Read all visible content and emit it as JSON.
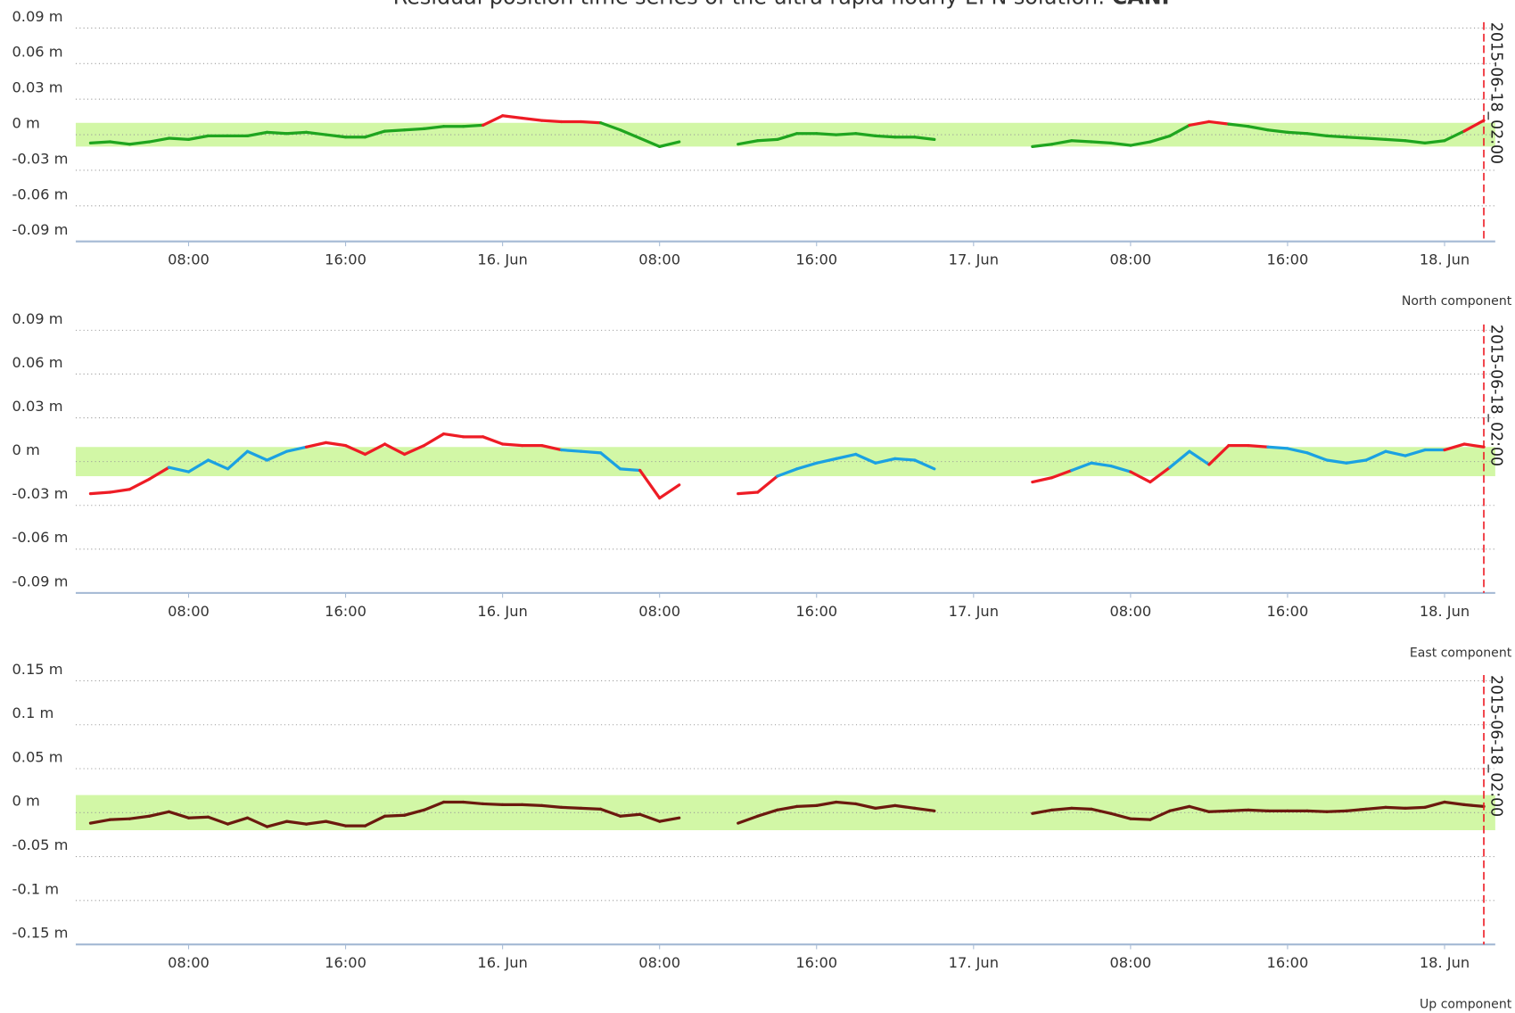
{
  "title": "Residual position time series of the ultra rapid hourly EPN solution:",
  "station": "CANF",
  "chart_data": [
    {
      "type": "line",
      "subtitle": "North component",
      "x": [
        "2015-06-15 03:00",
        "2015-06-15 04:00",
        "2015-06-15 05:00",
        "2015-06-15 06:00",
        "2015-06-15 07:00",
        "2015-06-15 08:00",
        "2015-06-15 09:00",
        "2015-06-15 10:00",
        "2015-06-15 11:00",
        "2015-06-15 12:00",
        "2015-06-15 13:00",
        "2015-06-15 14:00",
        "2015-06-15 15:00",
        "2015-06-15 16:00",
        "2015-06-15 17:00",
        "2015-06-15 18:00",
        "2015-06-15 19:00",
        "2015-06-15 20:00",
        "2015-06-15 21:00",
        "2015-06-15 22:00",
        "2015-06-15 23:00",
        "2015-06-16 00:00",
        "2015-06-16 01:00",
        "2015-06-16 02:00",
        "2015-06-16 03:00",
        "2015-06-16 04:00",
        "2015-06-16 05:00",
        "2015-06-16 06:00",
        "2015-06-16 07:00",
        "2015-06-16 08:00",
        "2015-06-16 09:00",
        "2015-06-16 10:00",
        "2015-06-16 11:00",
        "2015-06-16 12:00",
        "2015-06-16 13:00",
        "2015-06-16 14:00",
        "2015-06-16 15:00",
        "2015-06-16 16:00",
        "2015-06-16 17:00",
        "2015-06-16 18:00",
        "2015-06-16 19:00",
        "2015-06-16 20:00",
        "2015-06-16 21:00",
        "2015-06-16 22:00",
        "2015-06-16 23:00",
        "2015-06-17 00:00",
        "2015-06-17 01:00",
        "2015-06-17 02:00",
        "2015-06-17 03:00",
        "2015-06-17 04:00",
        "2015-06-17 05:00",
        "2015-06-17 06:00",
        "2015-06-17 07:00",
        "2015-06-17 08:00",
        "2015-06-17 09:00",
        "2015-06-17 10:00",
        "2015-06-17 11:00",
        "2015-06-17 12:00",
        "2015-06-17 13:00",
        "2015-06-17 14:00",
        "2015-06-17 15:00",
        "2015-06-17 16:00",
        "2015-06-17 17:00",
        "2015-06-17 18:00",
        "2015-06-17 19:00",
        "2015-06-17 20:00",
        "2015-06-17 21:00",
        "2015-06-17 22:00",
        "2015-06-17 23:00",
        "2015-06-18 00:00",
        "2015-06-18 01:00",
        "2015-06-18 02:00"
      ],
      "series": [
        {
          "color": "#1fa51f",
          "exceed_color": "#ee1c25",
          "values": [
            -0.007,
            -0.006,
            -0.008,
            -0.006,
            -0.003,
            -0.004,
            -0.001,
            -0.001,
            -0.001,
            0.002,
            0.001,
            0.002,
            0,
            -0.002,
            -0.002,
            0.003,
            0.004,
            0.005,
            0.007,
            0.007,
            0.008,
            0.016,
            0.014,
            0.012,
            0.011,
            0.011,
            0.01,
            0.004,
            -0.003,
            -0.01,
            -0.006,
            null,
            null,
            -0.008,
            -0.005,
            -0.004,
            0.001,
            0.001,
            0,
            0.001,
            -0.001,
            -0.002,
            -0.002,
            -0.004,
            null,
            null,
            null,
            null,
            -0.01,
            -0.008,
            -0.005,
            -0.006,
            -0.007,
            -0.009,
            -0.006,
            -0.001,
            0.008,
            0.011,
            0.009,
            0.007,
            0.004,
            0.002,
            0.001,
            -0.001,
            -0.002,
            -0.003,
            -0.004,
            -0.005,
            -0.007,
            -0.005,
            0.003,
            0.012
          ]
        }
      ],
      "band": [
        -0.01,
        0.01
      ],
      "band_color": "#d2f7a6",
      "xlim": [
        "2015-06-15 02:15",
        "2015-06-18 02:35"
      ],
      "xticks": [
        {
          "value": "2015-06-15 08:00",
          "label": "08:00"
        },
        {
          "value": "2015-06-15 16:00",
          "label": "16:00"
        },
        {
          "value": "2015-06-16 00:00",
          "label": "16. Jun"
        },
        {
          "value": "2015-06-16 08:00",
          "label": "08:00"
        },
        {
          "value": "2015-06-16 16:00",
          "label": "16:00"
        },
        {
          "value": "2015-06-17 00:00",
          "label": "17. Jun"
        },
        {
          "value": "2015-06-17 08:00",
          "label": "08:00"
        },
        {
          "value": "2015-06-17 16:00",
          "label": "16:00"
        },
        {
          "value": "2015-06-18 00:00",
          "label": "18. Jun"
        }
      ],
      "ylim": [
        -0.09,
        0.09
      ],
      "yticks": [
        {
          "value": 0.09,
          "label": "0.09 m"
        },
        {
          "value": 0.06,
          "label": "0.06 m"
        },
        {
          "value": 0.03,
          "label": "0.03 m"
        },
        {
          "value": 0,
          "label": "0 m"
        },
        {
          "value": -0.03,
          "label": "-0.03 m"
        },
        {
          "value": -0.06,
          "label": "-0.06 m"
        },
        {
          "value": -0.09,
          "label": "-0.09 m"
        }
      ],
      "grid": true,
      "marker": {
        "x": "2015-06-18 02:00",
        "label": "2015-06-18_02:00",
        "color": "#ee1c25"
      }
    },
    {
      "type": "line",
      "subtitle": "East component",
      "x": [
        "2015-06-15 03:00",
        "2015-06-15 04:00",
        "2015-06-15 05:00",
        "2015-06-15 06:00",
        "2015-06-15 07:00",
        "2015-06-15 08:00",
        "2015-06-15 09:00",
        "2015-06-15 10:00",
        "2015-06-15 11:00",
        "2015-06-15 12:00",
        "2015-06-15 13:00",
        "2015-06-15 14:00",
        "2015-06-15 15:00",
        "2015-06-15 16:00",
        "2015-06-15 17:00",
        "2015-06-15 18:00",
        "2015-06-15 19:00",
        "2015-06-15 20:00",
        "2015-06-15 21:00",
        "2015-06-15 22:00",
        "2015-06-15 23:00",
        "2015-06-16 00:00",
        "2015-06-16 01:00",
        "2015-06-16 02:00",
        "2015-06-16 03:00",
        "2015-06-16 04:00",
        "2015-06-16 05:00",
        "2015-06-16 06:00",
        "2015-06-16 07:00",
        "2015-06-16 08:00",
        "2015-06-16 09:00",
        "2015-06-16 10:00",
        "2015-06-16 11:00",
        "2015-06-16 12:00",
        "2015-06-16 13:00",
        "2015-06-16 14:00",
        "2015-06-16 15:00",
        "2015-06-16 16:00",
        "2015-06-16 17:00",
        "2015-06-16 18:00",
        "2015-06-16 19:00",
        "2015-06-16 20:00",
        "2015-06-16 21:00",
        "2015-06-16 22:00",
        "2015-06-16 23:00",
        "2015-06-17 00:00",
        "2015-06-17 01:00",
        "2015-06-17 02:00",
        "2015-06-17 03:00",
        "2015-06-17 04:00",
        "2015-06-17 05:00",
        "2015-06-17 06:00",
        "2015-06-17 07:00",
        "2015-06-17 08:00",
        "2015-06-17 09:00",
        "2015-06-17 10:00",
        "2015-06-17 11:00",
        "2015-06-17 12:00",
        "2015-06-17 13:00",
        "2015-06-17 14:00",
        "2015-06-17 15:00",
        "2015-06-17 16:00",
        "2015-06-17 17:00",
        "2015-06-17 18:00",
        "2015-06-17 19:00",
        "2015-06-17 20:00",
        "2015-06-17 21:00",
        "2015-06-17 22:00",
        "2015-06-17 23:00",
        "2015-06-18 00:00",
        "2015-06-18 01:00",
        "2015-06-18 02:00"
      ],
      "series": [
        {
          "color": "#1ba1e2",
          "exceed_color": "#ee1c25",
          "values": [
            -0.022,
            -0.021,
            -0.019,
            -0.012,
            -0.004,
            -0.007,
            0.001,
            -0.005,
            0.007,
            0.001,
            0.007,
            0.01,
            0.013,
            0.011,
            0.005,
            0.012,
            0.005,
            0.011,
            0.019,
            0.017,
            0.017,
            0.012,
            0.011,
            0.011,
            0.008,
            0.007,
            0.006,
            -0.005,
            -0.006,
            -0.025,
            -0.016,
            null,
            null,
            -0.022,
            -0.021,
            -0.01,
            -0.005,
            -0.001,
            0.002,
            0.005,
            -0.001,
            0.002,
            0.001,
            -0.005,
            null,
            null,
            null,
            null,
            -0.014,
            -0.011,
            -0.006,
            -0.001,
            -0.003,
            -0.007,
            -0.014,
            -0.004,
            0.007,
            -0.002,
            0.011,
            0.011,
            0.01,
            0.009,
            0.006,
            0.001,
            -0.001,
            0.001,
            0.007,
            0.004,
            0.008,
            0.008,
            0.012,
            0.01
          ]
        }
      ],
      "band": [
        -0.01,
        0.01
      ],
      "band_color": "#d2f7a6",
      "xlim": [
        "2015-06-15 02:15",
        "2015-06-18 02:35"
      ],
      "xticks": [
        {
          "value": "2015-06-15 08:00",
          "label": "08:00"
        },
        {
          "value": "2015-06-15 16:00",
          "label": "16:00"
        },
        {
          "value": "2015-06-16 00:00",
          "label": "16. Jun"
        },
        {
          "value": "2015-06-16 08:00",
          "label": "08:00"
        },
        {
          "value": "2015-06-16 16:00",
          "label": "16:00"
        },
        {
          "value": "2015-06-17 00:00",
          "label": "17. Jun"
        },
        {
          "value": "2015-06-17 08:00",
          "label": "08:00"
        },
        {
          "value": "2015-06-17 16:00",
          "label": "16:00"
        },
        {
          "value": "2015-06-18 00:00",
          "label": "18. Jun"
        }
      ],
      "ylim": [
        -0.09,
        0.09
      ],
      "yticks": [
        {
          "value": 0.09,
          "label": "0.09 m"
        },
        {
          "value": 0.06,
          "label": "0.06 m"
        },
        {
          "value": 0.03,
          "label": "0.03 m"
        },
        {
          "value": 0,
          "label": "0 m"
        },
        {
          "value": -0.03,
          "label": "-0.03 m"
        },
        {
          "value": -0.06,
          "label": "-0.06 m"
        },
        {
          "value": -0.09,
          "label": "-0.09 m"
        }
      ],
      "grid": true,
      "marker": {
        "x": "2015-06-18 02:00",
        "label": "2015-06-18_02:00",
        "color": "#ee1c25"
      }
    },
    {
      "type": "line",
      "subtitle": "Up component",
      "x": [
        "2015-06-15 03:00",
        "2015-06-15 04:00",
        "2015-06-15 05:00",
        "2015-06-15 06:00",
        "2015-06-15 07:00",
        "2015-06-15 08:00",
        "2015-06-15 09:00",
        "2015-06-15 10:00",
        "2015-06-15 11:00",
        "2015-06-15 12:00",
        "2015-06-15 13:00",
        "2015-06-15 14:00",
        "2015-06-15 15:00",
        "2015-06-15 16:00",
        "2015-06-15 17:00",
        "2015-06-15 18:00",
        "2015-06-15 19:00",
        "2015-06-15 20:00",
        "2015-06-15 21:00",
        "2015-06-15 22:00",
        "2015-06-15 23:00",
        "2015-06-16 00:00",
        "2015-06-16 01:00",
        "2015-06-16 02:00",
        "2015-06-16 03:00",
        "2015-06-16 04:00",
        "2015-06-16 05:00",
        "2015-06-16 06:00",
        "2015-06-16 07:00",
        "2015-06-16 08:00",
        "2015-06-16 09:00",
        "2015-06-16 10:00",
        "2015-06-16 11:00",
        "2015-06-16 12:00",
        "2015-06-16 13:00",
        "2015-06-16 14:00",
        "2015-06-16 15:00",
        "2015-06-16 16:00",
        "2015-06-16 17:00",
        "2015-06-16 18:00",
        "2015-06-16 19:00",
        "2015-06-16 20:00",
        "2015-06-16 21:00",
        "2015-06-16 22:00",
        "2015-06-16 23:00",
        "2015-06-17 00:00",
        "2015-06-17 01:00",
        "2015-06-17 02:00",
        "2015-06-17 03:00",
        "2015-06-17 04:00",
        "2015-06-17 05:00",
        "2015-06-17 06:00",
        "2015-06-17 07:00",
        "2015-06-17 08:00",
        "2015-06-17 09:00",
        "2015-06-17 10:00",
        "2015-06-17 11:00",
        "2015-06-17 12:00",
        "2015-06-17 13:00",
        "2015-06-17 14:00",
        "2015-06-17 15:00",
        "2015-06-17 16:00",
        "2015-06-17 17:00",
        "2015-06-17 18:00",
        "2015-06-17 19:00",
        "2015-06-17 20:00",
        "2015-06-17 21:00",
        "2015-06-17 22:00",
        "2015-06-17 23:00",
        "2015-06-18 00:00",
        "2015-06-18 01:00",
        "2015-06-18 02:00"
      ],
      "series": [
        {
          "color": "#6b1a0e",
          "exceed_color": "#ee1c25",
          "values": [
            -0.012,
            -0.008,
            -0.007,
            -0.004,
            0.001,
            -0.006,
            -0.005,
            -0.013,
            -0.006,
            -0.016,
            -0.01,
            -0.013,
            -0.01,
            -0.015,
            -0.015,
            -0.004,
            -0.003,
            0.003,
            0.012,
            0.012,
            0.01,
            0.009,
            0.009,
            0.008,
            0.006,
            0.005,
            0.004,
            -0.004,
            -0.002,
            -0.01,
            -0.006,
            null,
            null,
            -0.012,
            -0.004,
            0.003,
            0.007,
            0.008,
            0.012,
            0.01,
            0.005,
            0.008,
            0.005,
            0.002,
            null,
            null,
            null,
            null,
            -0.001,
            0.003,
            0.005,
            0.004,
            -0.001,
            -0.007,
            -0.008,
            0.002,
            0.007,
            0.001,
            0.002,
            0.003,
            0.002,
            0.002,
            0.002,
            0.001,
            0.002,
            0.004,
            0.006,
            0.005,
            0.006,
            0.012,
            0.009,
            0.007
          ]
        }
      ],
      "band": [
        -0.02,
        0.02
      ],
      "band_color": "#d2f7a6",
      "xlim": [
        "2015-06-15 02:15",
        "2015-06-18 02:35"
      ],
      "xticks": [
        {
          "value": "2015-06-15 08:00",
          "label": "08:00"
        },
        {
          "value": "2015-06-15 16:00",
          "label": "16:00"
        },
        {
          "value": "2015-06-16 00:00",
          "label": "16. Jun"
        },
        {
          "value": "2015-06-16 08:00",
          "label": "08:00"
        },
        {
          "value": "2015-06-16 16:00",
          "label": "16:00"
        },
        {
          "value": "2015-06-17 00:00",
          "label": "17. Jun"
        },
        {
          "value": "2015-06-17 08:00",
          "label": "08:00"
        },
        {
          "value": "2015-06-17 16:00",
          "label": "16:00"
        },
        {
          "value": "2015-06-18 00:00",
          "label": "18. Jun"
        }
      ],
      "ylim": [
        -0.15,
        0.15
      ],
      "yticks": [
        {
          "value": 0.15,
          "label": "0.15 m"
        },
        {
          "value": 0.1,
          "label": "0.1 m"
        },
        {
          "value": 0.05,
          "label": "0.05 m"
        },
        {
          "value": 0,
          "label": "0 m"
        },
        {
          "value": -0.05,
          "label": "-0.05 m"
        },
        {
          "value": -0.1,
          "label": "-0.1 m"
        },
        {
          "value": -0.15,
          "label": "-0.15 m"
        }
      ],
      "grid": true,
      "marker": {
        "x": "2015-06-18 02:00",
        "label": "2015-06-18_02:00",
        "color": "#ee1c25"
      }
    }
  ]
}
